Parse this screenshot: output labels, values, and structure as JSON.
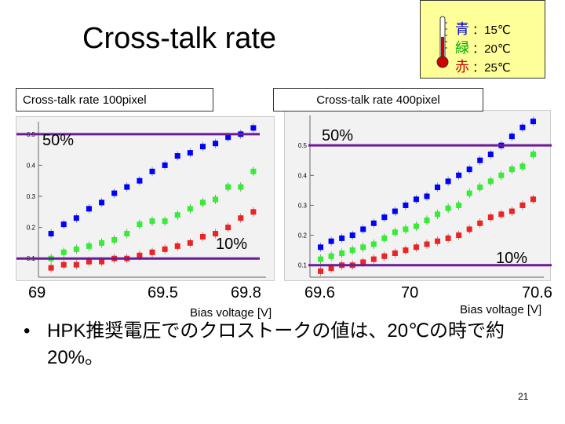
{
  "slide": {
    "title": "Cross-talk rate",
    "page_number": "21",
    "note": "HPK推奨電圧でのクロストークの値は、20℃の時で約20%。"
  },
  "legend": {
    "items": [
      {
        "kanji": "青",
        "value": "：15℃",
        "color": "#0000cc"
      },
      {
        "kanji": "緑",
        "value": "：20℃",
        "color": "#00aa00"
      },
      {
        "kanji": "赤",
        "value": "：25℃",
        "color": "#cc0000"
      }
    ]
  },
  "left_plot": {
    "title": "Cross-talk rate  100pixel",
    "line50_label": "50%",
    "line10_label": "10%",
    "xticks": [
      "69",
      "69.5",
      "69.8"
    ],
    "xlabel": "Bias voltage [V]"
  },
  "right_plot": {
    "title": "Cross-talk rate  400pixel",
    "line50_label": "50%",
    "line10_label": "10%",
    "xticks": [
      "69.6",
      "70",
      "70.6"
    ],
    "xlabel": "Bias voltage [V]"
  },
  "chart_data": [
    {
      "type": "scatter",
      "title": "Cross-talk rate  100pixel",
      "xlabel": "Bias voltage [V]",
      "ylabel": "",
      "xlim": [
        68.95,
        69.85
      ],
      "ylim": [
        0.04,
        0.54
      ],
      "yticks": [
        0.1,
        0.2,
        0.3,
        0.4,
        0.5
      ],
      "hlines": [
        0.5,
        0.1
      ],
      "series": [
        {
          "color": "#0000ff",
          "x": [
            69.0,
            69.05,
            69.1,
            69.15,
            69.2,
            69.25,
            69.3,
            69.35,
            69.4,
            69.45,
            69.5,
            69.55,
            69.6,
            69.65,
            69.7,
            69.75,
            69.8
          ],
          "y": [
            0.18,
            0.21,
            0.23,
            0.26,
            0.28,
            0.31,
            0.33,
            0.35,
            0.38,
            0.4,
            0.43,
            0.44,
            0.46,
            0.47,
            0.49,
            0.5,
            0.52
          ]
        },
        {
          "color": "#33ee33",
          "x": [
            69.0,
            69.05,
            69.1,
            69.15,
            69.2,
            69.25,
            69.3,
            69.35,
            69.4,
            69.45,
            69.5,
            69.55,
            69.6,
            69.65,
            69.7,
            69.75,
            69.8
          ],
          "y": [
            0.1,
            0.12,
            0.13,
            0.14,
            0.15,
            0.16,
            0.18,
            0.21,
            0.22,
            0.22,
            0.24,
            0.26,
            0.28,
            0.29,
            0.33,
            0.33,
            0.38
          ]
        },
        {
          "color": "#ee2222",
          "x": [
            69.0,
            69.05,
            69.1,
            69.15,
            69.2,
            69.25,
            69.3,
            69.35,
            69.4,
            69.45,
            69.5,
            69.55,
            69.6,
            69.65,
            69.7,
            69.75,
            69.8
          ],
          "y": [
            0.07,
            0.08,
            0.08,
            0.09,
            0.09,
            0.1,
            0.1,
            0.11,
            0.12,
            0.13,
            0.14,
            0.15,
            0.17,
            0.18,
            0.2,
            0.23,
            0.25
          ]
        }
      ]
    },
    {
      "type": "scatter",
      "title": "Cross-talk rate  400pixel",
      "xlabel": "Bias voltage [V]",
      "ylabel": "",
      "xlim": [
        69.55,
        70.65
      ],
      "ylim": [
        0.06,
        0.6
      ],
      "yticks": [
        0.1,
        0.2,
        0.3,
        0.4,
        0.5
      ],
      "hlines": [
        0.5,
        0.1
      ],
      "series": [
        {
          "color": "#0000ff",
          "x": [
            69.6,
            69.65,
            69.7,
            69.75,
            69.8,
            69.85,
            69.9,
            69.95,
            70.0,
            70.05,
            70.1,
            70.15,
            70.2,
            70.25,
            70.3,
            70.35,
            70.4,
            70.45,
            70.5,
            70.55,
            70.6
          ],
          "y": [
            0.16,
            0.18,
            0.19,
            0.2,
            0.22,
            0.24,
            0.26,
            0.28,
            0.3,
            0.32,
            0.33,
            0.36,
            0.38,
            0.4,
            0.42,
            0.45,
            0.47,
            0.5,
            0.53,
            0.56,
            0.58
          ]
        },
        {
          "color": "#33ee33",
          "x": [
            69.6,
            69.65,
            69.7,
            69.75,
            69.8,
            69.85,
            69.9,
            69.95,
            70.0,
            70.05,
            70.1,
            70.15,
            70.2,
            70.25,
            70.3,
            70.35,
            70.4,
            70.45,
            70.5,
            70.55,
            70.6
          ],
          "y": [
            0.12,
            0.13,
            0.14,
            0.15,
            0.16,
            0.17,
            0.19,
            0.21,
            0.22,
            0.23,
            0.25,
            0.27,
            0.29,
            0.3,
            0.34,
            0.36,
            0.38,
            0.4,
            0.42,
            0.43,
            0.47
          ]
        },
        {
          "color": "#ee2222",
          "x": [
            69.6,
            69.65,
            69.7,
            69.75,
            69.8,
            69.85,
            69.9,
            69.95,
            70.0,
            70.05,
            70.1,
            70.15,
            70.2,
            70.25,
            70.3,
            70.35,
            70.4,
            70.45,
            70.5,
            70.55,
            70.6
          ],
          "y": [
            0.08,
            0.09,
            0.1,
            0.1,
            0.11,
            0.12,
            0.13,
            0.14,
            0.15,
            0.16,
            0.17,
            0.18,
            0.19,
            0.2,
            0.22,
            0.24,
            0.26,
            0.27,
            0.28,
            0.3,
            0.32
          ]
        }
      ]
    }
  ]
}
